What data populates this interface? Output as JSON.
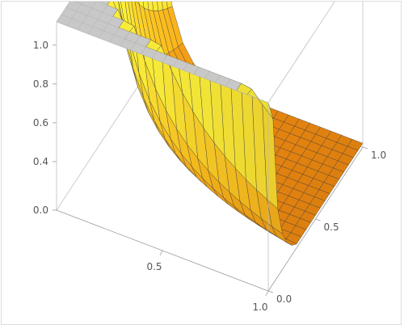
{
  "chart_data": {
    "type": "surface3d",
    "title": "",
    "xlabel": "",
    "ylabel": "",
    "zlabel": "",
    "x_range": [
      0,
      1
    ],
    "y_range": [
      0,
      1
    ],
    "z_range": [
      0.15,
      1.12
    ],
    "x_ticks": [
      {
        "value": 0.5,
        "label": "0.5"
      },
      {
        "value": 1.0,
        "label": "1.0"
      }
    ],
    "y_ticks": [
      {
        "value": 0.0,
        "label": "0.0"
      },
      {
        "value": 0.5,
        "label": "0.5"
      },
      {
        "value": 1.0,
        "label": "1.0"
      }
    ],
    "z_ticks": [
      {
        "value": 0.0,
        "label": "0.0"
      },
      {
        "value": 0.4,
        "label": "0.4"
      },
      {
        "value": 0.6,
        "label": "0.6"
      },
      {
        "value": 0.8,
        "label": "0.8"
      },
      {
        "value": 1.0,
        "label": "1.0"
      }
    ],
    "surface": {
      "x": [
        0,
        0.05,
        0.1,
        0.15,
        0.2,
        0.25,
        0.3,
        0.35,
        0.4,
        0.45,
        0.5,
        0.55,
        0.6,
        0.65,
        0.7,
        0.75,
        0.8,
        0.85,
        0.9,
        0.95,
        1
      ],
      "y": [
        0,
        0.05,
        0.1,
        0.15,
        0.2,
        0.25,
        0.3,
        0.35,
        0.4,
        0.45,
        0.5,
        0.55,
        0.6,
        0.65,
        0.7,
        0.75,
        0.8,
        0.85,
        0.9,
        0.95,
        1
      ],
      "z_cap": 1.12,
      "z_floor": 0.17,
      "shape": "z = 0.05 / (x * y), clipped to the vertical range"
    },
    "colors": {
      "surface_light": "#fff13a",
      "surface_mid": "#ffc21f",
      "surface_dark": "#f08a10",
      "clipped_top": "#c8c8c8",
      "mesh": "#3a3a3a"
    },
    "box_edges": true,
    "grid": false,
    "legend": "none"
  }
}
